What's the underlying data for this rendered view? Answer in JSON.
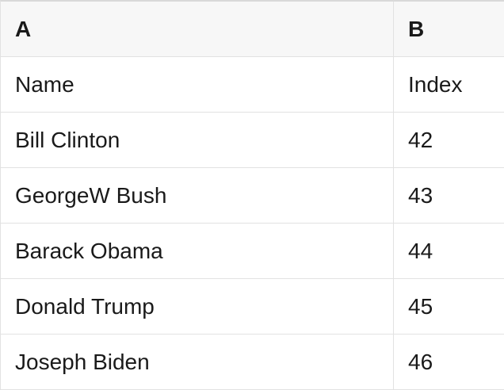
{
  "table": {
    "headers": [
      "A",
      "B"
    ],
    "rows": [
      [
        "Name",
        "Index"
      ],
      [
        "Bill Clinton",
        "42"
      ],
      [
        "GeorgeW Bush",
        "43"
      ],
      [
        "Barack Obama",
        "44"
      ],
      [
        "Donald Trump",
        "45"
      ],
      [
        "Joseph Biden",
        "46"
      ]
    ]
  },
  "colors": {
    "header_bg": "#f7f7f7",
    "border": "#e2e2e2",
    "text": "#1a1a1a"
  }
}
